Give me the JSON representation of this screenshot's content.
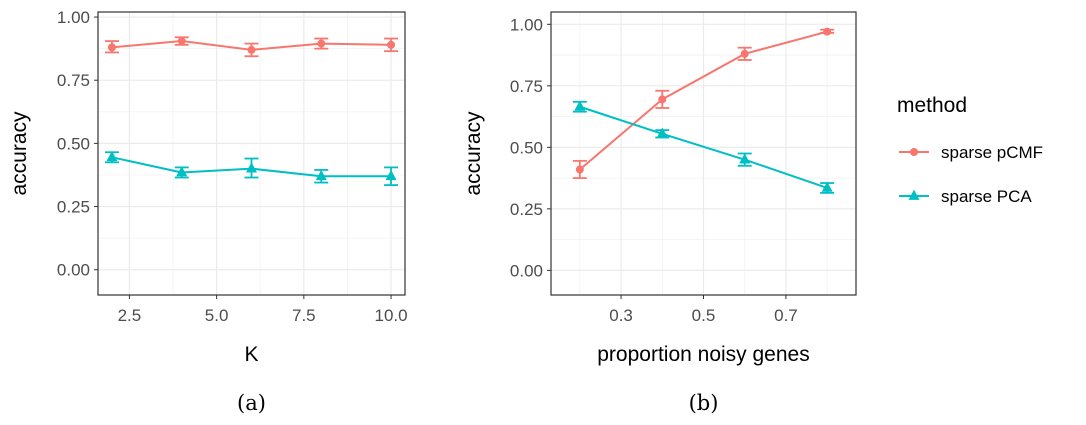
{
  "chart_data": [
    {
      "type": "line",
      "caption": "(a)",
      "xlabel": "K",
      "ylabel": "accuracy",
      "xlim": [
        1.6,
        10.4
      ],
      "ylim": [
        -0.1,
        1.02
      ],
      "xticks": [
        2.5,
        5.0,
        7.5,
        10.0
      ],
      "xtick_labels": [
        "2.5",
        "5.0",
        "7.5",
        "10.0"
      ],
      "yticks": [
        0.0,
        0.25,
        0.5,
        0.75,
        1.0
      ],
      "ytick_labels": [
        "0.00",
        "0.25",
        "0.50",
        "0.75",
        "1.00"
      ],
      "grid": true,
      "series": [
        {
          "name": "sparse pCMF",
          "color": "#F8766D",
          "marker": "circle",
          "x": [
            2,
            4,
            6,
            8,
            10
          ],
          "y": [
            0.88,
            0.905,
            0.87,
            0.895,
            0.89
          ],
          "err_low": [
            0.86,
            0.89,
            0.845,
            0.875,
            0.865
          ],
          "err_high": [
            0.905,
            0.92,
            0.895,
            0.915,
            0.915
          ]
        },
        {
          "name": "sparse PCA",
          "color": "#00BFC4",
          "marker": "triangle",
          "x": [
            2,
            4,
            6,
            8,
            10
          ],
          "y": [
            0.445,
            0.385,
            0.4,
            0.37,
            0.37
          ],
          "err_low": [
            0.425,
            0.365,
            0.365,
            0.345,
            0.335
          ],
          "err_high": [
            0.465,
            0.405,
            0.44,
            0.395,
            0.405
          ]
        }
      ]
    },
    {
      "type": "line",
      "caption": "(b)",
      "xlabel": "proportion noisy genes",
      "ylabel": "accuracy",
      "xlim": [
        0.13,
        0.87
      ],
      "ylim": [
        -0.1,
        1.05
      ],
      "xticks": [
        0.3,
        0.5,
        0.7
      ],
      "xtick_labels": [
        "0.3",
        "0.5",
        "0.7"
      ],
      "yticks": [
        0.0,
        0.25,
        0.5,
        0.75,
        1.0
      ],
      "ytick_labels": [
        "0.00",
        "0.25",
        "0.50",
        "0.75",
        "1.00"
      ],
      "grid": true,
      "series": [
        {
          "name": "sparse pCMF",
          "color": "#F8766D",
          "marker": "circle",
          "x": [
            0.2,
            0.4,
            0.6,
            0.8
          ],
          "y": [
            0.41,
            0.695,
            0.88,
            0.97
          ],
          "err_low": [
            0.375,
            0.66,
            0.855,
            0.965
          ],
          "err_high": [
            0.445,
            0.73,
            0.905,
            0.978
          ]
        },
        {
          "name": "sparse PCA",
          "color": "#00BFC4",
          "marker": "triangle",
          "x": [
            0.2,
            0.4,
            0.6,
            0.8
          ],
          "y": [
            0.665,
            0.555,
            0.45,
            0.335
          ],
          "err_low": [
            0.645,
            0.54,
            0.425,
            0.315
          ],
          "err_high": [
            0.685,
            0.57,
            0.475,
            0.355
          ]
        }
      ]
    }
  ],
  "legend": {
    "title": "method",
    "placement": "right",
    "items": [
      {
        "label": "sparse pCMF",
        "color": "#F8766D",
        "marker": "circle"
      },
      {
        "label": "sparse PCA",
        "color": "#00BFC4",
        "marker": "triangle"
      }
    ]
  }
}
